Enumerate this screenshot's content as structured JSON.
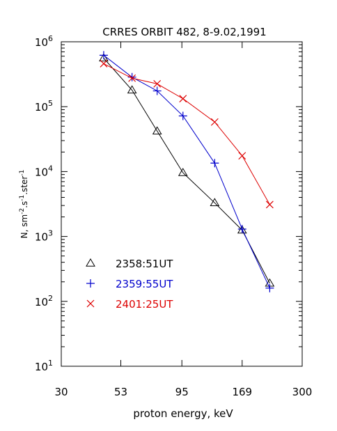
{
  "chart_data": {
    "type": "line",
    "title": "CRRES ORBIT 482, 8-9.02,1991",
    "xlabel": "proton energy, keV",
    "ylabel": "N, sm",
    "ylabel_exp1": "-2",
    "ylabel_mid1": ".s",
    "ylabel_exp2": "-1",
    "ylabel_mid2": ".ster",
    "ylabel_exp3": "-1",
    "x_scale": "log",
    "y_scale": "log",
    "xlim": [
      30,
      300
    ],
    "ylim": [
      10,
      1000000
    ],
    "x_ticks": [
      {
        "value": 30,
        "label": "30"
      },
      {
        "value": 53,
        "label": "53"
      },
      {
        "value": 95,
        "label": "95"
      },
      {
        "value": 169,
        "label": "169"
      },
      {
        "value": 300,
        "label": "300"
      }
    ],
    "y_ticks": [
      {
        "value": 10,
        "base": "10",
        "exp": "1"
      },
      {
        "value": 100,
        "base": "10",
        "exp": "2"
      },
      {
        "value": 1000,
        "base": "10",
        "exp": "3"
      },
      {
        "value": 10000,
        "base": "10",
        "exp": "4"
      },
      {
        "value": 100000,
        "base": "10",
        "exp": "5"
      },
      {
        "value": 1000000,
        "base": "10",
        "exp": "6"
      }
    ],
    "legend_position": "bottom-left",
    "grid": false,
    "series": [
      {
        "name": "2358:51UT",
        "color": "#000000",
        "marker": "triangle",
        "x": [
          45,
          59,
          75,
          96,
          130,
          169,
          220
        ],
        "y": [
          560000,
          180000,
          42000,
          9600,
          3300,
          1250,
          190
        ]
      },
      {
        "name": "2359:55UT",
        "color": "#0000cc",
        "marker": "plus",
        "x": [
          45,
          59,
          75,
          96,
          130,
          169,
          220
        ],
        "y": [
          620000,
          285000,
          175000,
          72000,
          13500,
          1300,
          160
        ]
      },
      {
        "name": "2401:25UT",
        "color": "#dd0000",
        "marker": "x",
        "x": [
          45,
          59,
          75,
          96,
          130,
          169,
          220
        ],
        "y": [
          460000,
          275000,
          225000,
          133000,
          58000,
          17500,
          3100
        ]
      }
    ]
  }
}
